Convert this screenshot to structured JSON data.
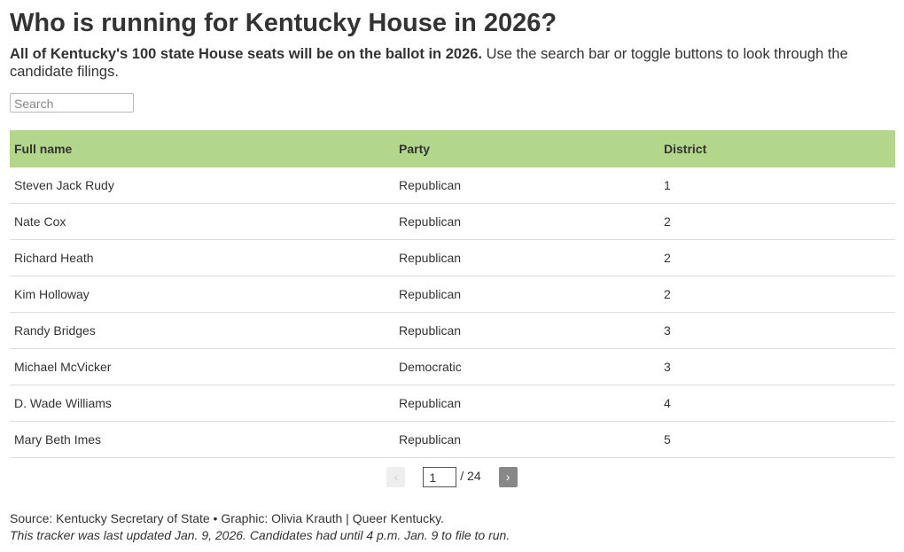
{
  "header": {
    "title": "Who is running for Kentucky House in 2026?",
    "intro_bold": "All of Kentucky's 100 state House seats will be on the ballot in 2026.",
    "intro_rest": "Use the search bar or toggle buttons to look through the candidate filings."
  },
  "search": {
    "placeholder": "Search"
  },
  "table": {
    "columns": [
      "Full name",
      "Party",
      "District"
    ],
    "rows": [
      [
        "Steven Jack Rudy",
        "Republican",
        1
      ],
      [
        "Nate Cox",
        "Republican",
        2
      ],
      [
        "Richard Heath",
        "Republican",
        2
      ],
      [
        "Kim Holloway",
        "Republican",
        2
      ],
      [
        "Randy Bridges",
        "Republican",
        3
      ],
      [
        "Michael McVicker",
        "Democratic",
        3
      ],
      [
        "D. Wade Williams",
        "Republican",
        4
      ],
      [
        "Mary Beth Imes",
        "Republican",
        5
      ]
    ]
  },
  "pagination": {
    "prev": "‹",
    "current": 1,
    "total_label": "/ 24",
    "next": "›"
  },
  "footer": {
    "source": "Source: Kentucky Secretary of State • Graphic: Olivia Krauth | Queer Kentucky.",
    "note": "This tracker was last updated Jan. 9, 2026. Candidates had until 4 p.m. Jan. 9 to file to run."
  }
}
